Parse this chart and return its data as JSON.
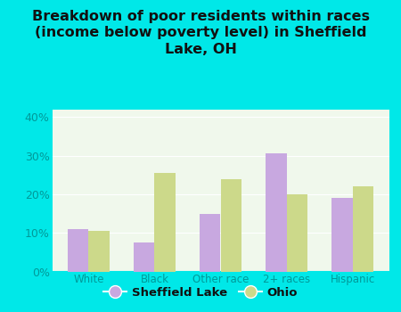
{
  "title": "Breakdown of poor residents within races\n(income below poverty level) in Sheffield\nLake, OH",
  "categories": [
    "White",
    "Black",
    "Other race",
    "2+ races",
    "Hispanic"
  ],
  "sheffield_lake": [
    11.0,
    7.5,
    15.0,
    30.5,
    19.0
  ],
  "ohio": [
    10.5,
    25.5,
    24.0,
    20.0,
    22.0
  ],
  "sheffield_color": "#c8a8e0",
  "ohio_color": "#ccd98a",
  "background_outer": "#00e8e8",
  "background_plot": "#f0f8ec",
  "ylim": [
    0,
    42
  ],
  "yticks": [
    0,
    10,
    20,
    30,
    40
  ],
  "ytick_labels": [
    "0%",
    "10%",
    "20%",
    "30%",
    "40%"
  ],
  "title_fontsize": 11.5,
  "legend_labels": [
    "Sheffield Lake",
    "Ohio"
  ],
  "bar_width": 0.32,
  "tick_color": "#00cccc",
  "label_color": "#009999"
}
